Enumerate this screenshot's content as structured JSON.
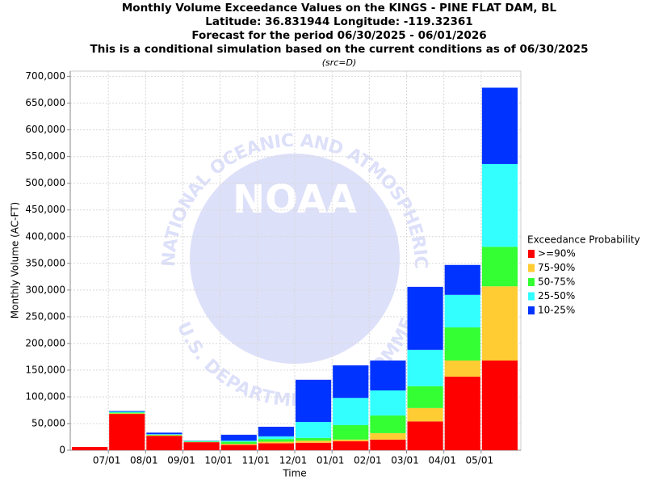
{
  "chart_data": {
    "type": "stacked_bar",
    "title": [
      "Monthly Volume Exceedance Values on the KINGS - PINE FLAT DAM, BL",
      "Latitude: 36.831944 Longitude: -119.32361",
      "Forecast for the period 06/30/2025 - 06/01/2026",
      "This is a conditional simulation based on the current conditions as of 06/30/2025"
    ],
    "subtitle": "(src=D)",
    "x_label": "Time",
    "y_label": "Monthly Volume (AC-FT)",
    "legend_title": "Exceedance Probability",
    "legend": "right",
    "grid": true,
    "watermark": {
      "logo": "NOAA",
      "ring_top": "NATIONAL OCEANIC AND ATMOSPHERIC ADMINISTRATION",
      "ring_bottom": "U.S. DEPARTMENT OF COMMERCE"
    },
    "categories": [
      null,
      null,
      null,
      null,
      null,
      null,
      null,
      null,
      null,
      null,
      null,
      null
    ],
    "xticks": [
      "07/01",
      "08/01",
      "09/01",
      "10/01",
      "11/01",
      "12/01",
      "01/01",
      "02/01",
      "03/01",
      "04/01",
      "05/01"
    ],
    "ylim": [
      0,
      710000
    ],
    "yticks": [
      0,
      {
        "value": 50000,
        "label": "50,000"
      },
      {
        "value": 100000,
        "label": "100,000"
      },
      {
        "value": 150000,
        "label": "150,000"
      },
      {
        "value": 200000,
        "label": "200,000"
      },
      {
        "value": 250000,
        "label": "250,000"
      },
      {
        "value": 300000,
        "label": "300,000"
      },
      {
        "value": 350000,
        "label": "350,000"
      },
      {
        "value": 400000,
        "label": "400,000"
      },
      {
        "value": 450000,
        "label": "450,000"
      },
      {
        "value": 500000,
        "label": "500,000"
      },
      {
        "value": 550000,
        "label": "550,000"
      },
      {
        "value": 600000,
        "label": "600,000"
      },
      {
        "value": 650000,
        "label": "650,000"
      },
      {
        "value": 700000,
        "label": "700,000"
      }
    ],
    "series": [
      {
        "name": ">=90%",
        "color": "#ff0000",
        "values": [
          6000,
          68000,
          27000,
          15000,
          10000,
          13000,
          14000,
          17000,
          20000,
          54000,
          138000,
          168000
        ]
      },
      {
        "name": "75-90%",
        "color": "#ffcc33",
        "values": [
          0,
          1000,
          1000,
          500,
          2000,
          3000,
          4000,
          3000,
          12000,
          25000,
          30000,
          139000
        ]
      },
      {
        "name": "50-75%",
        "color": "#33ff33",
        "values": [
          0,
          1500,
          1000,
          1000,
          4000,
          5000,
          5000,
          27000,
          33000,
          41000,
          62000,
          74000
        ]
      },
      {
        "name": "25-50%",
        "color": "#33ffff",
        "values": [
          0,
          1500,
          1000,
          1000,
          2000,
          5000,
          30000,
          51000,
          47000,
          68000,
          61000,
          155000
        ]
      },
      {
        "name": "10-25%",
        "color": "#0033ff",
        "values": [
          0,
          1500,
          3000,
          500,
          11000,
          18000,
          79000,
          61000,
          56000,
          118000,
          56000,
          143000
        ]
      }
    ]
  }
}
